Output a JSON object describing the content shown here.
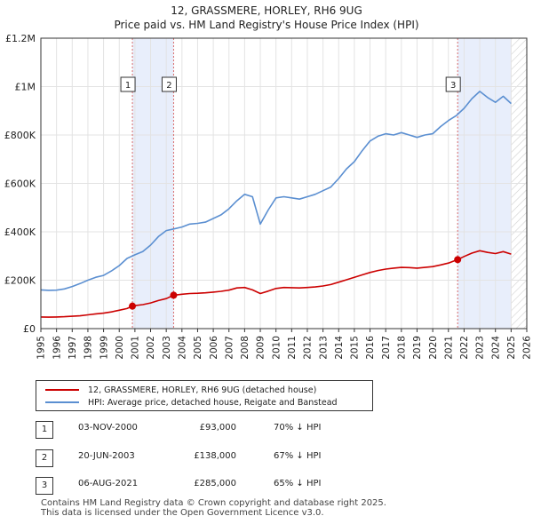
{
  "chart_data": {
    "type": "line",
    "title": "12, GRASSMERE, HORLEY, RH6 9UG",
    "subtitle": "Price paid vs. HM Land Registry's House Price Index (HPI)",
    "xlim": [
      1995,
      2026
    ],
    "ylim": [
      0,
      1200000
    ],
    "x_ticks": [
      1995,
      1996,
      1997,
      1998,
      1999,
      2000,
      2001,
      2002,
      2003,
      2004,
      2005,
      2006,
      2007,
      2008,
      2009,
      2010,
      2011,
      2012,
      2013,
      2014,
      2015,
      2016,
      2017,
      2018,
      2019,
      2020,
      2021,
      2022,
      2023,
      2024,
      2025,
      2026
    ],
    "y_ticks": [
      {
        "value": 0,
        "label": "£0"
      },
      {
        "value": 200000,
        "label": "£200K"
      },
      {
        "value": 400000,
        "label": "£400K"
      },
      {
        "value": 600000,
        "label": "£600K"
      },
      {
        "value": 800000,
        "label": "£800K"
      },
      {
        "value": 1000000,
        "label": "£1M"
      },
      {
        "value": 1200000,
        "label": "£1.2M"
      }
    ],
    "grid": true,
    "series": [
      {
        "name": "12, GRASSMERE, HORLEY, RH6 9UG (detached house)",
        "color": "#cc0000",
        "points": [
          [
            1995.0,
            48000
          ],
          [
            1995.5,
            47500
          ],
          [
            1996.0,
            48000
          ],
          [
            1996.5,
            49000
          ],
          [
            1997.0,
            51000
          ],
          [
            1997.5,
            53000
          ],
          [
            1998.0,
            57000
          ],
          [
            1998.5,
            61000
          ],
          [
            1999.0,
            64000
          ],
          [
            1999.5,
            69000
          ],
          [
            2000.0,
            76000
          ],
          [
            2000.5,
            83000
          ],
          [
            2000.84,
            93000
          ],
          [
            2001.0,
            95000
          ],
          [
            2001.5,
            99000
          ],
          [
            2002.0,
            106000
          ],
          [
            2002.5,
            116000
          ],
          [
            2003.0,
            124000
          ],
          [
            2003.47,
            138000
          ],
          [
            2004.0,
            142000
          ],
          [
            2004.5,
            145000
          ],
          [
            2005.0,
            146000
          ],
          [
            2005.5,
            148000
          ],
          [
            2006.0,
            151000
          ],
          [
            2006.5,
            154000
          ],
          [
            2007.0,
            159000
          ],
          [
            2007.5,
            168000
          ],
          [
            2008.0,
            170000
          ],
          [
            2008.5,
            160000
          ],
          [
            2009.0,
            145000
          ],
          [
            2009.5,
            155000
          ],
          [
            2010.0,
            166000
          ],
          [
            2010.5,
            170000
          ],
          [
            2011.0,
            169000
          ],
          [
            2011.5,
            168000
          ],
          [
            2012.0,
            170000
          ],
          [
            2012.5,
            172000
          ],
          [
            2013.0,
            176000
          ],
          [
            2013.5,
            182000
          ],
          [
            2014.0,
            192000
          ],
          [
            2014.5,
            202000
          ],
          [
            2015.0,
            212000
          ],
          [
            2015.5,
            222000
          ],
          [
            2016.0,
            232000
          ],
          [
            2016.5,
            240000
          ],
          [
            2017.0,
            246000
          ],
          [
            2017.5,
            250000
          ],
          [
            2018.0,
            253000
          ],
          [
            2018.5,
            252000
          ],
          [
            2019.0,
            250000
          ],
          [
            2019.5,
            253000
          ],
          [
            2020.0,
            256000
          ],
          [
            2020.5,
            263000
          ],
          [
            2021.0,
            271000
          ],
          [
            2021.59,
            285000
          ],
          [
            2022.0,
            298000
          ],
          [
            2022.5,
            312000
          ],
          [
            2023.0,
            322000
          ],
          [
            2023.5,
            315000
          ],
          [
            2024.0,
            310000
          ],
          [
            2024.5,
            318000
          ],
          [
            2025.0,
            308000
          ]
        ]
      },
      {
        "name": "HPI: Average price, detached house, Reigate and Banstead",
        "color": "#5b8fd1",
        "points": [
          [
            1995.0,
            160000
          ],
          [
            1995.5,
            158000
          ],
          [
            1996.0,
            159000
          ],
          [
            1996.5,
            164000
          ],
          [
            1997.0,
            174000
          ],
          [
            1997.5,
            186000
          ],
          [
            1998.0,
            200000
          ],
          [
            1998.5,
            212000
          ],
          [
            1999.0,
            220000
          ],
          [
            1999.5,
            238000
          ],
          [
            2000.0,
            260000
          ],
          [
            2000.5,
            290000
          ],
          [
            2001.0,
            305000
          ],
          [
            2001.5,
            318000
          ],
          [
            2002.0,
            345000
          ],
          [
            2002.5,
            380000
          ],
          [
            2003.0,
            405000
          ],
          [
            2003.5,
            412000
          ],
          [
            2004.0,
            420000
          ],
          [
            2004.5,
            432000
          ],
          [
            2005.0,
            435000
          ],
          [
            2005.5,
            440000
          ],
          [
            2006.0,
            455000
          ],
          [
            2006.5,
            470000
          ],
          [
            2007.0,
            495000
          ],
          [
            2007.5,
            528000
          ],
          [
            2008.0,
            555000
          ],
          [
            2008.5,
            545000
          ],
          [
            2009.0,
            432000
          ],
          [
            2009.5,
            490000
          ],
          [
            2010.0,
            540000
          ],
          [
            2010.5,
            545000
          ],
          [
            2011.0,
            540000
          ],
          [
            2011.5,
            535000
          ],
          [
            2012.0,
            545000
          ],
          [
            2012.5,
            555000
          ],
          [
            2013.0,
            570000
          ],
          [
            2013.5,
            585000
          ],
          [
            2014.0,
            620000
          ],
          [
            2014.5,
            660000
          ],
          [
            2015.0,
            690000
          ],
          [
            2015.5,
            735000
          ],
          [
            2016.0,
            775000
          ],
          [
            2016.5,
            795000
          ],
          [
            2017.0,
            805000
          ],
          [
            2017.5,
            800000
          ],
          [
            2018.0,
            810000
          ],
          [
            2018.5,
            800000
          ],
          [
            2019.0,
            790000
          ],
          [
            2019.5,
            800000
          ],
          [
            2020.0,
            805000
          ],
          [
            2020.5,
            835000
          ],
          [
            2021.0,
            860000
          ],
          [
            2021.5,
            880000
          ],
          [
            2022.0,
            910000
          ],
          [
            2022.5,
            950000
          ],
          [
            2023.0,
            980000
          ],
          [
            2023.5,
            955000
          ],
          [
            2024.0,
            935000
          ],
          [
            2024.5,
            960000
          ],
          [
            2025.0,
            930000
          ]
        ]
      }
    ],
    "transactions": [
      {
        "label": "1",
        "date": "03-NOV-2000",
        "x": 2000.84,
        "price": 93000,
        "price_label": "£93,000",
        "hpi_label": "70% ↓ HPI"
      },
      {
        "label": "2",
        "date": "20-JUN-2003",
        "x": 2003.47,
        "price": 138000,
        "price_label": "£138,000",
        "hpi_label": "67% ↓ HPI"
      },
      {
        "label": "3",
        "date": "06-AUG-2021",
        "x": 2021.59,
        "price": 285000,
        "price_label": "£285,000",
        "hpi_label": "65% ↓ HPI"
      }
    ],
    "shaded_ranges": [
      [
        2000.84,
        2003.47
      ],
      [
        2021.59,
        2025.0
      ]
    ],
    "future_hatch_from": 2025.0
  },
  "legend": {
    "property_label": "12, GRASSMERE, HORLEY, RH6 9UG (detached house)",
    "hpi_label": "HPI: Average price, detached house, Reigate and Banstead",
    "property_color": "#cc0000",
    "hpi_color": "#5b8fd1"
  },
  "footer": {
    "line1": "Contains HM Land Registry data © Crown copyright and database right 2025.",
    "line2": "This data is licensed under the Open Government Licence v3.0."
  }
}
